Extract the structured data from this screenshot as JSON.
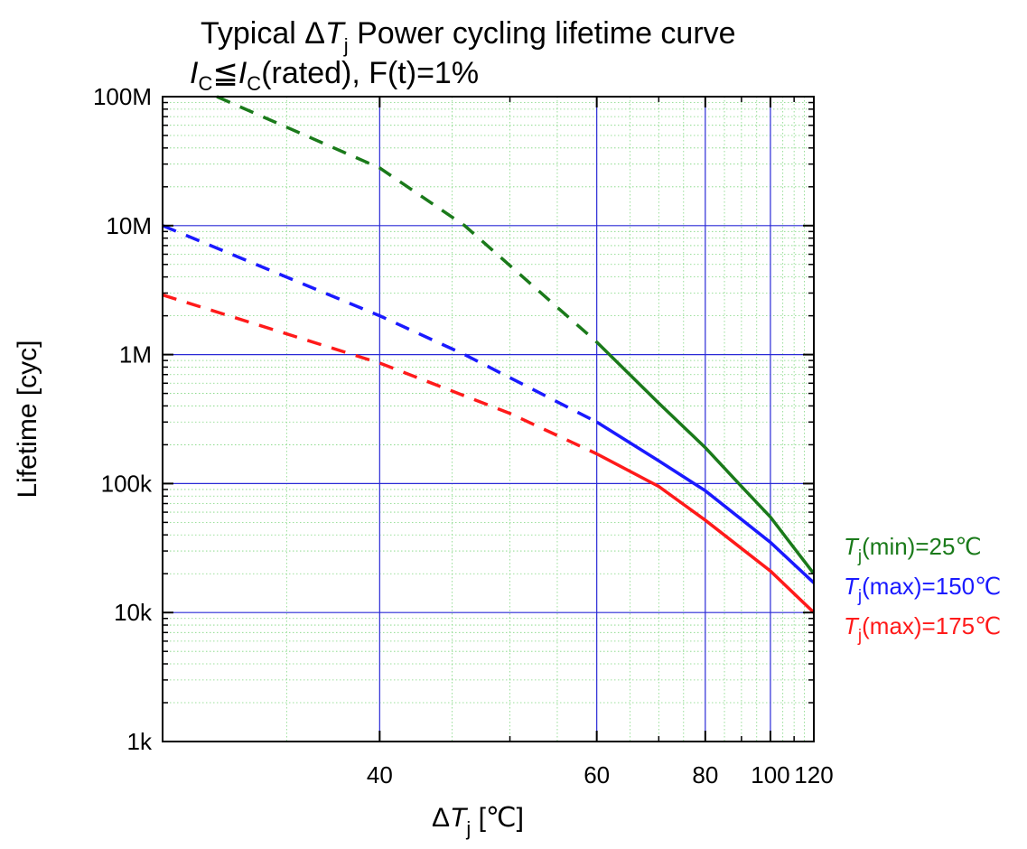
{
  "chart_data": {
    "type": "line",
    "title_line1": {
      "prefix": "Typical Δ",
      "var": "T",
      "sub": "j",
      "suffix": " Power cycling lifetime curve"
    },
    "title_line2": {
      "var1": "I",
      "sub1": "C",
      "rel": "≦",
      "var2": "I",
      "sub2": "C",
      "suffix": "(rated), F(t)=1%"
    },
    "xlabel": {
      "prefix": "Δ",
      "var": "T",
      "sub": "j",
      "unit": "  [℃]"
    },
    "ylabel": "Lifetime [cyc]",
    "x_scale": "reciprocal",
    "xlim": [
      30,
      120
    ],
    "y_scale": "log",
    "ylim": [
      1000,
      100000000
    ],
    "x_ticks": [
      {
        "value": 40,
        "label": "40"
      },
      {
        "value": 60,
        "label": "60"
      },
      {
        "value": 80,
        "label": "80"
      },
      {
        "value": 100,
        "label": "100"
      },
      {
        "value": 120,
        "label": "120"
      }
    ],
    "y_ticks": [
      {
        "value": 1000,
        "label": "1k"
      },
      {
        "value": 10000,
        "label": "10k"
      },
      {
        "value": 100000,
        "label": "100k"
      },
      {
        "value": 1000000,
        "label": "1M"
      },
      {
        "value": 10000000,
        "label": "10M"
      },
      {
        "value": 100000000,
        "label": "100M"
      }
    ],
    "grid": true,
    "legend_position": "right",
    "series": [
      {
        "legend_var": "T",
        "legend_sub": "j",
        "legend_text": "(min)=25℃",
        "color": "#1a7a1a",
        "dashed_segment": [
          [
            32,
            100000000
          ],
          [
            40,
            28000000
          ],
          [
            46,
            10000000
          ],
          [
            60,
            1250000
          ]
        ],
        "solid_segment": [
          [
            60,
            1250000
          ],
          [
            70,
            420000
          ],
          [
            80,
            190000
          ],
          [
            90,
            95000
          ],
          [
            100,
            55000
          ],
          [
            120,
            20000
          ]
        ]
      },
      {
        "legend_var": "T",
        "legend_sub": "j",
        "legend_text": "(max)=150℃",
        "color": "#1a1aff",
        "dashed_segment": [
          [
            30,
            10000000
          ],
          [
            40,
            2000000
          ],
          [
            46,
            1000000
          ],
          [
            60,
            300000
          ]
        ],
        "solid_segment": [
          [
            60,
            300000
          ],
          [
            70,
            150000
          ],
          [
            80,
            88000
          ],
          [
            100,
            35000
          ],
          [
            120,
            17000
          ]
        ]
      },
      {
        "legend_var": "T",
        "legend_sub": "j",
        "legend_text": "(max)=175℃",
        "color": "#ff1a1a",
        "dashed_segment": [
          [
            30,
            2900000
          ],
          [
            40,
            860000
          ],
          [
            50,
            350000
          ],
          [
            60,
            170000
          ]
        ],
        "solid_segment": [
          [
            60,
            170000
          ],
          [
            70,
            95000
          ],
          [
            80,
            52000
          ],
          [
            100,
            21000
          ],
          [
            120,
            10000
          ]
        ]
      }
    ]
  }
}
